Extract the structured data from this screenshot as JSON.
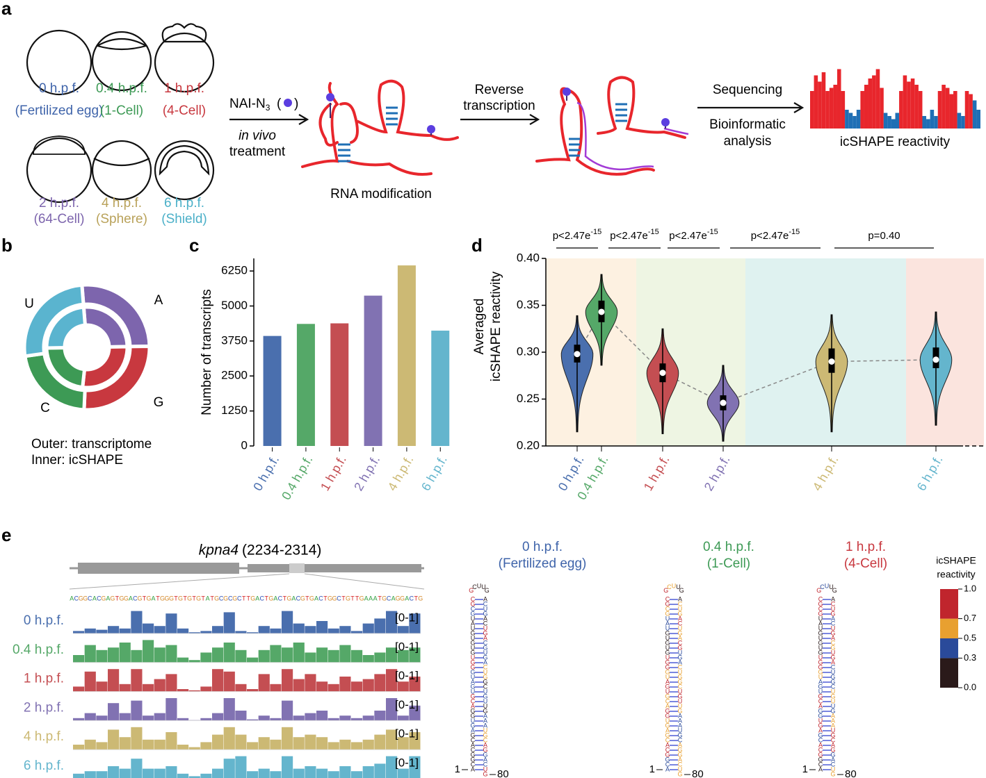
{
  "panel_a": {
    "label": "a",
    "stages": [
      {
        "time": "0 h.p.f.",
        "name": "(Fertilized egg)",
        "color": "#3f64aa"
      },
      {
        "time": "0.4 h.p.f.",
        "name": "(1-Cell)",
        "color": "#3d9a55"
      },
      {
        "time": "1 h.p.f.",
        "name": "(4-Cell)",
        "color": "#c8383f"
      },
      {
        "time": "2 h.p.f.",
        "name": "(64-Cell)",
        "color": "#7d65ad"
      },
      {
        "time": "4 h.p.f.",
        "name": "(Sphere)",
        "color": "#b9a25a"
      },
      {
        "time": "6 h.p.f.",
        "name": "(Shield)",
        "color": "#4bb0c8"
      }
    ],
    "reagent": "NAI-N",
    "reagent_sub": "3",
    "treatment": [
      "in vivo",
      "treatment"
    ],
    "step1": "RNA modification",
    "step2": [
      "Reverse",
      "transcription"
    ],
    "step3": "Sequencing",
    "step4": [
      "Bioinformatic",
      "analysis"
    ],
    "result": "icSHAPE reactivity",
    "reactivity": [
      0.6,
      0.85,
      0.75,
      0.9,
      0.6,
      0.65,
      0.7,
      0.95,
      0.6,
      0.3,
      0.25,
      0.2,
      0.3,
      0.6,
      0.7,
      0.8,
      0.85,
      0.95,
      0.65,
      0.25,
      0.2,
      0.15,
      0.25,
      0.6,
      0.85,
      0.75,
      0.8,
      0.7,
      0.6,
      0.2,
      0.15,
      0.3,
      0.2,
      0.6,
      0.7,
      0.65,
      0.55,
      0.6,
      0.25,
      0.2,
      0.6,
      0.55,
      0.45,
      0.3
    ],
    "reactivity_colors": [
      "#1f6fb5",
      "#e8262c"
    ]
  },
  "chart_data": [
    {
      "type": "donut",
      "label": "b",
      "categories": [
        "A",
        "G",
        "C",
        "U"
      ],
      "colors": [
        "#7d65ad",
        "#c8383f",
        "#3d9a55",
        "#5ab4cf"
      ],
      "series": [
        {
          "name": "Outer: transcriptome",
          "values": [
            26,
            26,
            22,
            26
          ]
        },
        {
          "name": "Inner: icSHAPE",
          "values": [
            26,
            27,
            23,
            24
          ]
        }
      ]
    },
    {
      "type": "bar",
      "label": "c",
      "ylabel": "Number of transcripts",
      "categories": [
        "0 h.p.f.",
        "0.4 h.p.f.",
        "1 h.p.f.",
        "2 h.p.f.",
        "4 h.p.f.",
        "6 h.p.f."
      ],
      "values": [
        3930,
        4360,
        4380,
        5370,
        6450,
        4120
      ],
      "colors": [
        "#4a6fae",
        "#55a868",
        "#c44e52",
        "#8172b2",
        "#ccb974",
        "#64b5cd"
      ],
      "ylim": [
        0,
        6700
      ],
      "yticks": [
        0,
        1250,
        2500,
        3750,
        5000,
        6250
      ]
    },
    {
      "type": "violin",
      "label": "d",
      "ylabel": [
        "Averaged",
        "icSHAPE reactivity"
      ],
      "categories": [
        "0 h.p.f.",
        "0.4 h.p.f.",
        "1 h.p.f.",
        "2 h.p.f.",
        "4 h.p.f.",
        "6 h.p.f."
      ],
      "values": [
        0.298,
        0.343,
        0.278,
        0.246,
        0.29,
        0.292
      ],
      "q1": [
        0.289,
        0.332,
        0.268,
        0.238,
        0.278,
        0.283
      ],
      "q3": [
        0.308,
        0.355,
        0.288,
        0.254,
        0.304,
        0.305
      ],
      "mins": [
        0.215,
        0.286,
        0.213,
        0.205,
        0.215,
        0.222
      ],
      "maxs": [
        0.339,
        0.383,
        0.325,
        0.286,
        0.34,
        0.343
      ],
      "colors": [
        "#4a6fae",
        "#55a868",
        "#c44e52",
        "#8172b2",
        "#ccb974",
        "#64b5cd"
      ],
      "band_colors": [
        "#fdf1e1",
        "#eef5e3",
        "#dff2f0",
        "#fbe4de"
      ],
      "ylim": [
        0.2,
        0.4
      ],
      "yticks": [
        {
          "value": 0.2,
          "label": "0.20"
        },
        0.25,
        {
          "value": 0.3,
          "label": "0.30"
        },
        0.35,
        {
          "value": 0.4,
          "label": "0.40"
        }
      ],
      "annotations": [
        {
          "text": "p<2.47e",
          "sup": "-15"
        },
        {
          "text": "p<2.47e",
          "sup": "-15"
        },
        {
          "text": "p<2.47e",
          "sup": "-15"
        },
        {
          "text": "p<2.47e",
          "sup": "-15"
        },
        {
          "text": "p=0.40"
        }
      ]
    }
  ],
  "panel_e": {
    "label": "e",
    "gene": "kpna4",
    "range": "(2234-2314)",
    "sequence": "ACGGCACGAGTGGACGTGATGGGTGTGTGTATGCGCGCTTGACTGACTGACGTGACTGGCTGTTGAAATGCAGGACTG",
    "rna_sequence": "ACGGCACGAGUGGACGUGAUGGGUGUGUGUAUGCGCGCUUGACUGACUGACGUGACUGGCUGUUGAAAUGCAGGACUG",
    "base_colors": {
      "A": "#2a9d3a",
      "C": "#2b4fb5",
      "G": "#d4892a",
      "T": "#d62728"
    },
    "track_range": "[0-1]",
    "tracks": [
      {
        "name": "0 h.p.f.",
        "color": "#4a6fae",
        "values": [
          0.1,
          0.2,
          0.15,
          0.3,
          0.2,
          0.9,
          0.4,
          0.3,
          0.8,
          0.2,
          0.05,
          0.1,
          0.3,
          0.85,
          0.1,
          0.05,
          0.3,
          0.2,
          0.9,
          0.4,
          0.3,
          0.5,
          0.2,
          0.3,
          0.1,
          0.4,
          0.6,
          0.9,
          0.3,
          0.8
        ]
      },
      {
        "name": "0.4 h.p.f.",
        "color": "#55a868",
        "values": [
          0.3,
          0.7,
          0.5,
          0.6,
          0.8,
          0.5,
          0.9,
          0.6,
          0.7,
          0.2,
          0.1,
          0.4,
          0.6,
          0.8,
          0.5,
          0.2,
          0.5,
          0.7,
          0.6,
          0.8,
          0.4,
          0.6,
          0.5,
          0.7,
          0.5,
          0.3,
          0.4,
          0.6,
          0.5,
          0.6
        ]
      },
      {
        "name": "1 h.p.f.",
        "color": "#c44e52",
        "values": [
          0.2,
          0.8,
          0.4,
          0.9,
          0.3,
          0.9,
          0.3,
          0.5,
          0.7,
          0.1,
          0.05,
          0.2,
          0.9,
          0.8,
          0.3,
          0.1,
          0.7,
          0.3,
          0.9,
          0.5,
          0.7,
          0.4,
          0.3,
          0.6,
          0.4,
          0.5,
          0.7,
          0.9,
          0.4,
          0.6
        ]
      },
      {
        "name": "2 h.p.f.",
        "color": "#8172b2",
        "values": [
          0.1,
          0.3,
          0.2,
          0.7,
          0.3,
          0.8,
          0.2,
          0.3,
          0.9,
          0.1,
          0.02,
          0.1,
          0.3,
          0.9,
          0.4,
          0.05,
          0.2,
          0.1,
          0.8,
          0.2,
          0.3,
          0.4,
          0.1,
          0.2,
          0.1,
          0.2,
          0.4,
          0.9,
          0.2,
          0.6
        ]
      },
      {
        "name": "4 h.p.f.",
        "color": "#ccb974",
        "values": [
          0.2,
          0.4,
          0.3,
          0.8,
          0.5,
          0.9,
          0.4,
          0.4,
          0.7,
          0.2,
          0.1,
          0.3,
          0.6,
          0.9,
          0.6,
          0.3,
          0.5,
          0.4,
          0.9,
          0.5,
          0.6,
          0.5,
          0.3,
          0.4,
          0.3,
          0.4,
          0.6,
          0.8,
          0.5,
          0.7
        ]
      },
      {
        "name": "6 h.p.f.",
        "color": "#64b5cd",
        "values": [
          0.2,
          0.3,
          0.3,
          0.5,
          0.4,
          0.8,
          0.4,
          0.4,
          0.5,
          0.2,
          0.1,
          0.2,
          0.4,
          0.8,
          0.9,
          0.3,
          0.4,
          0.3,
          0.9,
          0.4,
          0.5,
          0.4,
          0.3,
          0.5,
          0.3,
          0.5,
          0.6,
          0.9,
          0.4,
          0.9
        ]
      }
    ],
    "structures": [
      {
        "title": "0 h.p.f.",
        "subtitle": "(Fertilized egg)",
        "color": "#3f64aa",
        "start": "1",
        "end": "80"
      },
      {
        "title": "0.4 h.p.f.",
        "subtitle": "(1-Cell)",
        "color": "#3d9a55",
        "start": "1",
        "end": "80"
      },
      {
        "title": "1 h.p.f.",
        "subtitle": "(4-Cell)",
        "color": "#c8383f",
        "start": "1",
        "end": "80"
      }
    ],
    "colorbar": {
      "title": [
        "icSHAPE",
        "reactivity"
      ],
      "ticks": [
        {
          "value": 0,
          "label": "0.0"
        },
        0.3,
        0.5,
        0.7,
        {
          "value": 1,
          "label": "1.0"
        }
      ],
      "colors": [
        "#2a1a1a",
        "#2a4a9a",
        "#e8a030",
        "#c0252d"
      ]
    }
  }
}
